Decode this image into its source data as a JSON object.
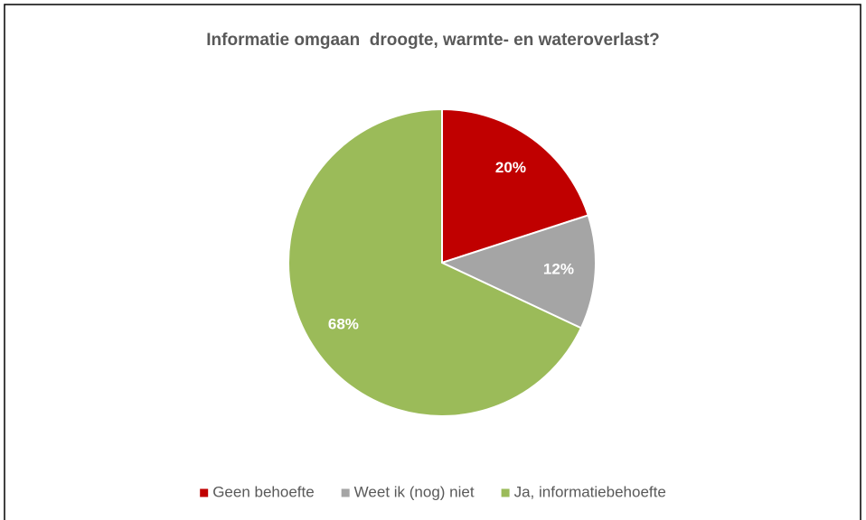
{
  "chart_data": {
    "type": "pie",
    "title": "Informatie omgaan  droogte, warmte- en wateroverlast?",
    "categories": [
      "Geen behoefte",
      "Weet ik (nog) niet",
      "Ja, informatiebehoefte"
    ],
    "values": [
      20,
      12,
      68
    ],
    "value_labels": [
      "20%",
      "12%",
      "68%"
    ],
    "colors": [
      "#c00000",
      "#a5a5a5",
      "#9bbb59"
    ],
    "legend": "bottom"
  }
}
